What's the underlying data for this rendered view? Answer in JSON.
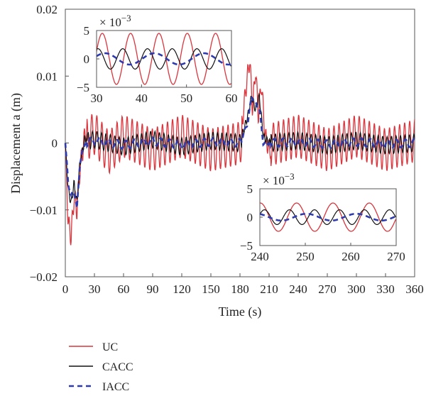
{
  "chart_data": {
    "type": "line",
    "xlabel": "Time (s)",
    "ylabel": "Displacement a (m)",
    "xlim": [
      0,
      360
    ],
    "ylim": [
      -0.02,
      0.02
    ],
    "x_ticks": [
      0,
      30,
      60,
      90,
      120,
      150,
      180,
      210,
      240,
      270,
      300,
      330,
      360
    ],
    "y_ticks": [
      -0.02,
      -0.01,
      0,
      0.01,
      0.02
    ],
    "y_tick_labels": [
      "−0.02",
      "−0.01",
      "0",
      "0.01",
      "0.02"
    ],
    "grid": false,
    "legend_position": "bottom-left, below plot",
    "series": [
      {
        "name": "UC",
        "color": "#d9363e",
        "style": "solid",
        "x": [
          0,
          3,
          6,
          9,
          12,
          15,
          20,
          30,
          45,
          60,
          90,
          120,
          150,
          180,
          186,
          190,
          193,
          196,
          199,
          202,
          206,
          210,
          240,
          270,
          300,
          330,
          360
        ],
        "y": [
          0,
          -0.012,
          -0.014,
          -0.008,
          -0.01,
          -0.004,
          0.001,
          0.004,
          -0.004,
          0.003,
          -0.003,
          0.003,
          -0.003,
          0.0,
          0.008,
          0.0125,
          0.005,
          0.011,
          0.004,
          0.009,
          0.001,
          -0.001,
          0.003,
          -0.003,
          0.003,
          -0.003,
          0.001
        ]
      },
      {
        "name": "CACC",
        "color": "#111111",
        "style": "solid",
        "x": [
          0,
          3,
          6,
          9,
          12,
          15,
          20,
          30,
          60,
          90,
          120,
          150,
          180,
          188,
          192,
          196,
          200,
          204,
          210,
          240,
          270,
          300,
          330,
          360
        ],
        "y": [
          0,
          -0.007,
          -0.009,
          -0.006,
          -0.009,
          -0.003,
          0.0005,
          0.0015,
          -0.0015,
          0.0015,
          -0.0015,
          0.001,
          0.0,
          0.004,
          0.007,
          0.005,
          0.007,
          0.001,
          0.0,
          0.001,
          -0.001,
          0.001,
          -0.001,
          0.0
        ]
      },
      {
        "name": "IACC",
        "color": "#2e3bb0",
        "style": "dashed",
        "x": [
          0,
          3,
          6,
          9,
          12,
          15,
          20,
          30,
          60,
          90,
          120,
          150,
          180,
          188,
          192,
          196,
          200,
          204,
          210,
          240,
          270,
          300,
          330,
          360
        ],
        "y": [
          0,
          -0.006,
          -0.008,
          -0.007,
          -0.01,
          -0.003,
          0.0,
          0.001,
          -0.0008,
          0.0008,
          -0.0008,
          0.0005,
          0.0,
          0.003,
          0.007,
          0.006,
          0.005,
          0.0,
          0.0,
          0.0005,
          -0.0005,
          0.0005,
          -0.0005,
          0.0
        ]
      }
    ],
    "insets": [
      {
        "xlim": [
          30,
          60
        ],
        "ylim": [
          -5,
          5
        ],
        "scale_label": "× 10",
        "scale_exponent": "−3",
        "x_ticks": [
          30,
          40,
          50,
          60
        ],
        "y_ticks": [
          -5,
          0,
          5
        ],
        "y_tick_labels": [
          "−5",
          "0",
          "5"
        ],
        "series": [
          {
            "name": "UC",
            "amplitude": 4.5,
            "period": 6.3,
            "phase": 0.3
          },
          {
            "name": "CACC",
            "amplitude": 1.8,
            "period": 5.5,
            "phase": 1.2
          },
          {
            "name": "IACC",
            "amplitude": 1.0,
            "period": 11.0,
            "phase": 0.5
          }
        ]
      },
      {
        "xlim": [
          240,
          270
        ],
        "ylim": [
          -5,
          5
        ],
        "scale_label": "× 10",
        "scale_exponent": "−3",
        "x_ticks": [
          240,
          250,
          260,
          270
        ],
        "y_ticks": [
          -5,
          0,
          5
        ],
        "y_tick_labels": [
          "−5",
          "0",
          "5"
        ],
        "series": [
          {
            "name": "UC",
            "amplitude": 2.5,
            "period": 8.0,
            "phase": 1.5
          },
          {
            "name": "CACC",
            "amplitude": 1.3,
            "period": 5.5,
            "phase": 0.4
          },
          {
            "name": "IACC",
            "amplitude": 0.6,
            "period": 11.0,
            "phase": 2.0
          }
        ]
      }
    ]
  }
}
